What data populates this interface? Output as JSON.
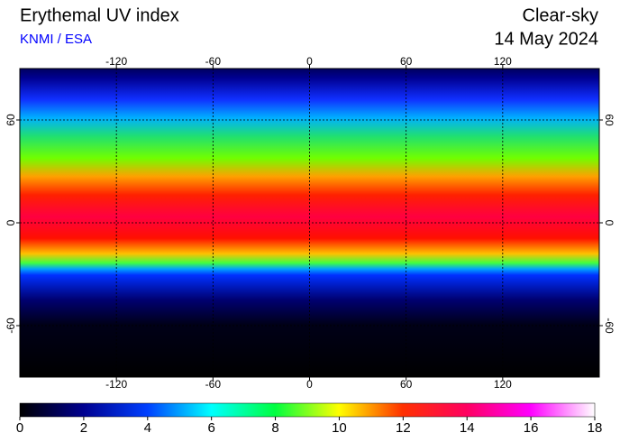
{
  "chart_data": {
    "type": "map",
    "title": "Erythemal UV index",
    "subtitle": "KNMI / ESA",
    "condition": "Clear-sky",
    "date": "14 May 2024",
    "xlim": [
      -180,
      180
    ],
    "xticks": [
      -120,
      -60,
      0,
      60,
      120
    ],
    "ylim": [
      -90,
      90
    ],
    "yticks": [
      60,
      0,
      -60
    ],
    "grid": true,
    "colorbar": {
      "lim": [
        0,
        18
      ],
      "ticks": [
        0,
        2,
        4,
        6,
        8,
        10,
        12,
        14,
        16,
        18
      ]
    }
  }
}
